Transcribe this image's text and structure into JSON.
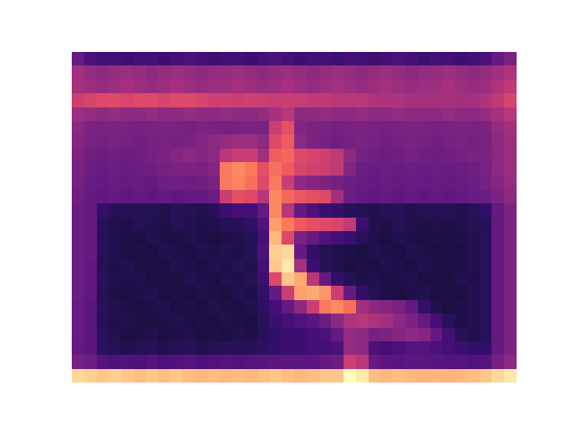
{
  "chart_data": {
    "type": "heatmap",
    "color": "magma",
    "tick_labels": false,
    "zlim": [
      0,
      1
    ],
    "z": [
      [
        0.3,
        0.24,
        0.22,
        0.22,
        0.2,
        0.22,
        0.22,
        0.2,
        0.22,
        0.24,
        0.22,
        0.2,
        0.22,
        0.22,
        0.2,
        0.22,
        0.24,
        0.22,
        0.2,
        0.22,
        0.22,
        0.2,
        0.22,
        0.22,
        0.2,
        0.22,
        0.24,
        0.22,
        0.2,
        0.22,
        0.22,
        0.2,
        0.22,
        0.24,
        0.3,
        0.35
      ],
      [
        0.45,
        0.42,
        0.4,
        0.42,
        0.44,
        0.42,
        0.4,
        0.42,
        0.44,
        0.42,
        0.4,
        0.42,
        0.42,
        0.44,
        0.42,
        0.4,
        0.42,
        0.44,
        0.42,
        0.4,
        0.42,
        0.44,
        0.42,
        0.4,
        0.42,
        0.44,
        0.42,
        0.4,
        0.42,
        0.42,
        0.44,
        0.42,
        0.4,
        0.42,
        0.45,
        0.48
      ],
      [
        0.46,
        0.44,
        0.42,
        0.44,
        0.46,
        0.44,
        0.42,
        0.44,
        0.46,
        0.44,
        0.42,
        0.44,
        0.44,
        0.46,
        0.44,
        0.42,
        0.44,
        0.46,
        0.44,
        0.42,
        0.44,
        0.46,
        0.44,
        0.42,
        0.44,
        0.46,
        0.44,
        0.42,
        0.44,
        0.44,
        0.46,
        0.44,
        0.42,
        0.44,
        0.48,
        0.52
      ],
      [
        0.55,
        0.58,
        0.6,
        0.6,
        0.58,
        0.6,
        0.6,
        0.58,
        0.6,
        0.6,
        0.58,
        0.56,
        0.56,
        0.55,
        0.56,
        0.55,
        0.54,
        0.55,
        0.54,
        0.52,
        0.52,
        0.5,
        0.5,
        0.5,
        0.48,
        0.48,
        0.47,
        0.46,
        0.46,
        0.46,
        0.46,
        0.45,
        0.46,
        0.48,
        0.52,
        0.58
      ],
      [
        0.44,
        0.42,
        0.4,
        0.42,
        0.4,
        0.4,
        0.42,
        0.4,
        0.4,
        0.42,
        0.4,
        0.4,
        0.42,
        0.4,
        0.4,
        0.42,
        0.46,
        0.5,
        0.4,
        0.4,
        0.42,
        0.4,
        0.4,
        0.42,
        0.4,
        0.4,
        0.42,
        0.4,
        0.4,
        0.4,
        0.42,
        0.4,
        0.4,
        0.42,
        0.46,
        0.5
      ],
      [
        0.4,
        0.36,
        0.35,
        0.36,
        0.35,
        0.34,
        0.35,
        0.36,
        0.35,
        0.34,
        0.36,
        0.35,
        0.34,
        0.35,
        0.36,
        0.35,
        0.55,
        0.62,
        0.38,
        0.36,
        0.35,
        0.34,
        0.35,
        0.36,
        0.35,
        0.34,
        0.35,
        0.36,
        0.35,
        0.34,
        0.35,
        0.36,
        0.35,
        0.36,
        0.42,
        0.45
      ],
      [
        0.38,
        0.35,
        0.34,
        0.35,
        0.34,
        0.33,
        0.34,
        0.35,
        0.34,
        0.36,
        0.38,
        0.4,
        0.42,
        0.44,
        0.44,
        0.4,
        0.6,
        0.65,
        0.4,
        0.36,
        0.34,
        0.33,
        0.34,
        0.35,
        0.34,
        0.33,
        0.34,
        0.35,
        0.34,
        0.33,
        0.34,
        0.35,
        0.34,
        0.35,
        0.4,
        0.44
      ],
      [
        0.36,
        0.33,
        0.32,
        0.33,
        0.32,
        0.33,
        0.34,
        0.36,
        0.38,
        0.4,
        0.38,
        0.4,
        0.5,
        0.55,
        0.55,
        0.45,
        0.66,
        0.68,
        0.6,
        0.58,
        0.56,
        0.52,
        0.4,
        0.34,
        0.33,
        0.32,
        0.33,
        0.34,
        0.33,
        0.32,
        0.33,
        0.34,
        0.35,
        0.36,
        0.4,
        0.44
      ],
      [
        0.35,
        0.32,
        0.31,
        0.32,
        0.31,
        0.32,
        0.33,
        0.34,
        0.35,
        0.36,
        0.35,
        0.38,
        0.72,
        0.75,
        0.72,
        0.62,
        0.7,
        0.65,
        0.58,
        0.56,
        0.55,
        0.52,
        0.38,
        0.32,
        0.31,
        0.32,
        0.31,
        0.32,
        0.31,
        0.32,
        0.31,
        0.32,
        0.33,
        0.35,
        0.4,
        0.44
      ],
      [
        0.34,
        0.31,
        0.3,
        0.31,
        0.3,
        0.31,
        0.3,
        0.32,
        0.33,
        0.32,
        0.33,
        0.35,
        0.72,
        0.74,
        0.7,
        0.6,
        0.72,
        0.55,
        0.4,
        0.38,
        0.36,
        0.34,
        0.32,
        0.31,
        0.3,
        0.31,
        0.3,
        0.31,
        0.3,
        0.31,
        0.3,
        0.31,
        0.32,
        0.34,
        0.38,
        0.42
      ],
      [
        0.33,
        0.3,
        0.29,
        0.3,
        0.29,
        0.3,
        0.29,
        0.3,
        0.29,
        0.3,
        0.3,
        0.32,
        0.55,
        0.62,
        0.6,
        0.5,
        0.75,
        0.68,
        0.64,
        0.62,
        0.6,
        0.45,
        0.32,
        0.3,
        0.29,
        0.3,
        0.29,
        0.3,
        0.29,
        0.3,
        0.29,
        0.3,
        0.31,
        0.32,
        0.36,
        0.4
      ],
      [
        0.32,
        0.3,
        0.18,
        0.16,
        0.15,
        0.16,
        0.15,
        0.14,
        0.16,
        0.15,
        0.14,
        0.16,
        0.2,
        0.22,
        0.22,
        0.3,
        0.75,
        0.5,
        0.3,
        0.24,
        0.2,
        0.18,
        0.16,
        0.15,
        0.14,
        0.15,
        0.16,
        0.14,
        0.15,
        0.16,
        0.15,
        0.14,
        0.16,
        0.18,
        0.3,
        0.36
      ],
      [
        0.32,
        0.3,
        0.16,
        0.14,
        0.13,
        0.15,
        0.14,
        0.13,
        0.15,
        0.14,
        0.13,
        0.14,
        0.15,
        0.16,
        0.18,
        0.25,
        0.8,
        0.72,
        0.65,
        0.62,
        0.6,
        0.58,
        0.52,
        0.2,
        0.14,
        0.13,
        0.15,
        0.14,
        0.13,
        0.14,
        0.13,
        0.14,
        0.15,
        0.16,
        0.3,
        0.36
      ],
      [
        0.32,
        0.3,
        0.15,
        0.14,
        0.13,
        0.12,
        0.14,
        0.13,
        0.12,
        0.14,
        0.13,
        0.12,
        0.13,
        0.14,
        0.15,
        0.22,
        0.85,
        0.6,
        0.35,
        0.3,
        0.25,
        0.22,
        0.2,
        0.16,
        0.13,
        0.12,
        0.14,
        0.13,
        0.12,
        0.13,
        0.12,
        0.13,
        0.14,
        0.16,
        0.3,
        0.36
      ],
      [
        0.32,
        0.3,
        0.16,
        0.14,
        0.12,
        0.13,
        0.12,
        0.14,
        0.13,
        0.12,
        0.14,
        0.13,
        0.14,
        0.13,
        0.15,
        0.24,
        0.9,
        0.92,
        0.3,
        0.18,
        0.15,
        0.14,
        0.13,
        0.12,
        0.14,
        0.13,
        0.12,
        0.14,
        0.13,
        0.12,
        0.13,
        0.12,
        0.14,
        0.16,
        0.3,
        0.36
      ],
      [
        0.32,
        0.29,
        0.15,
        0.13,
        0.14,
        0.12,
        0.13,
        0.12,
        0.14,
        0.13,
        0.12,
        0.14,
        0.13,
        0.15,
        0.14,
        0.22,
        0.88,
        0.95,
        0.45,
        0.2,
        0.16,
        0.14,
        0.12,
        0.13,
        0.12,
        0.14,
        0.13,
        0.12,
        0.14,
        0.13,
        0.12,
        0.13,
        0.14,
        0.16,
        0.3,
        0.36
      ],
      [
        0.32,
        0.29,
        0.16,
        0.14,
        0.13,
        0.14,
        0.12,
        0.13,
        0.12,
        0.14,
        0.13,
        0.12,
        0.14,
        0.13,
        0.15,
        0.2,
        0.6,
        0.88,
        0.82,
        0.5,
        0.3,
        0.18,
        0.15,
        0.13,
        0.14,
        0.12,
        0.13,
        0.14,
        0.12,
        0.13,
        0.12,
        0.14,
        0.13,
        0.16,
        0.3,
        0.36
      ],
      [
        0.32,
        0.29,
        0.15,
        0.13,
        0.12,
        0.13,
        0.14,
        0.12,
        0.13,
        0.12,
        0.14,
        0.13,
        0.12,
        0.14,
        0.13,
        0.18,
        0.3,
        0.55,
        0.8,
        0.82,
        0.78,
        0.55,
        0.3,
        0.18,
        0.15,
        0.13,
        0.12,
        0.13,
        0.14,
        0.12,
        0.13,
        0.12,
        0.14,
        0.16,
        0.3,
        0.36
      ],
      [
        0.31,
        0.28,
        0.16,
        0.14,
        0.13,
        0.12,
        0.13,
        0.14,
        0.12,
        0.13,
        0.12,
        0.14,
        0.13,
        0.12,
        0.14,
        0.17,
        0.22,
        0.3,
        0.4,
        0.55,
        0.72,
        0.75,
        0.7,
        0.45,
        0.4,
        0.38,
        0.35,
        0.3,
        0.18,
        0.14,
        0.12,
        0.13,
        0.14,
        0.16,
        0.3,
        0.36
      ],
      [
        0.31,
        0.28,
        0.15,
        0.13,
        0.14,
        0.13,
        0.12,
        0.13,
        0.14,
        0.12,
        0.13,
        0.12,
        0.14,
        0.13,
        0.12,
        0.16,
        0.2,
        0.22,
        0.25,
        0.28,
        0.32,
        0.4,
        0.48,
        0.5,
        0.48,
        0.45,
        0.4,
        0.36,
        0.3,
        0.22,
        0.16,
        0.13,
        0.14,
        0.16,
        0.3,
        0.36
      ],
      [
        0.31,
        0.28,
        0.16,
        0.14,
        0.12,
        0.13,
        0.14,
        0.12,
        0.13,
        0.14,
        0.12,
        0.13,
        0.12,
        0.14,
        0.13,
        0.16,
        0.18,
        0.2,
        0.2,
        0.22,
        0.24,
        0.3,
        0.42,
        0.4,
        0.34,
        0.36,
        0.38,
        0.4,
        0.38,
        0.3,
        0.22,
        0.16,
        0.14,
        0.16,
        0.3,
        0.36
      ],
      [
        0.3,
        0.28,
        0.17,
        0.15,
        0.14,
        0.15,
        0.16,
        0.14,
        0.15,
        0.16,
        0.14,
        0.15,
        0.16,
        0.15,
        0.16,
        0.17,
        0.18,
        0.2,
        0.2,
        0.22,
        0.22,
        0.24,
        0.42,
        0.4,
        0.24,
        0.22,
        0.24,
        0.26,
        0.26,
        0.24,
        0.22,
        0.2,
        0.18,
        0.18,
        0.3,
        0.36
      ],
      [
        0.34,
        0.32,
        0.26,
        0.24,
        0.25,
        0.24,
        0.26,
        0.24,
        0.25,
        0.26,
        0.24,
        0.25,
        0.26,
        0.25,
        0.26,
        0.27,
        0.28,
        0.28,
        0.28,
        0.28,
        0.3,
        0.32,
        0.55,
        0.5,
        0.3,
        0.28,
        0.27,
        0.28,
        0.28,
        0.27,
        0.26,
        0.26,
        0.25,
        0.26,
        0.34,
        0.4
      ],
      [
        0.92,
        0.9,
        0.88,
        0.9,
        0.88,
        0.86,
        0.88,
        0.86,
        0.88,
        0.86,
        0.85,
        0.86,
        0.85,
        0.86,
        0.85,
        0.86,
        0.88,
        0.86,
        0.85,
        0.86,
        0.88,
        0.88,
        1.0,
        0.96,
        0.86,
        0.85,
        0.86,
        0.85,
        0.84,
        0.85,
        0.84,
        0.85,
        0.86,
        0.88,
        0.92,
        0.95
      ]
    ]
  }
}
